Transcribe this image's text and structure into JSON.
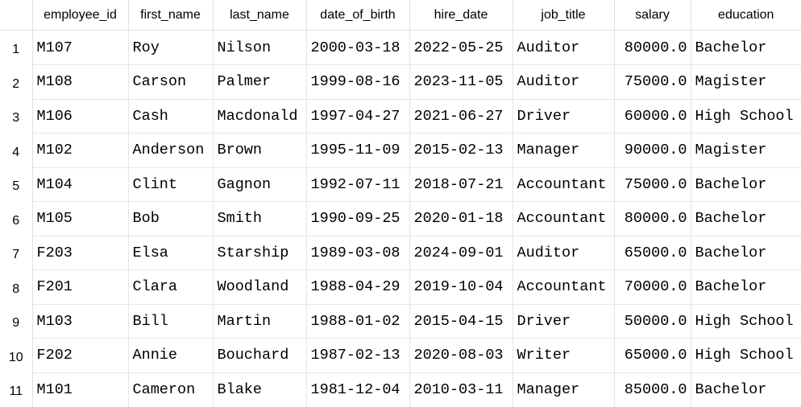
{
  "columns": [
    "employee_id",
    "first_name",
    "last_name",
    "date_of_birth",
    "hire_date",
    "job_title",
    "salary",
    "education"
  ],
  "rows": [
    {
      "n": "1",
      "employee_id": "M107",
      "first_name": "Roy",
      "last_name": "Nilson",
      "date_of_birth": "2000-03-18",
      "hire_date": "2022-05-25",
      "job_title": "Auditor",
      "salary": "80000.0",
      "education": "Bachelor"
    },
    {
      "n": "2",
      "employee_id": "M108",
      "first_name": "Carson",
      "last_name": "Palmer",
      "date_of_birth": "1999-08-16",
      "hire_date": "2023-11-05",
      "job_title": "Auditor",
      "salary": "75000.0",
      "education": "Magister"
    },
    {
      "n": "3",
      "employee_id": "M106",
      "first_name": "Cash",
      "last_name": "Macdonald",
      "date_of_birth": "1997-04-27",
      "hire_date": "2021-06-27",
      "job_title": "Driver",
      "salary": "60000.0",
      "education": "High School"
    },
    {
      "n": "4",
      "employee_id": "M102",
      "first_name": "Anderson",
      "last_name": "Brown",
      "date_of_birth": "1995-11-09",
      "hire_date": "2015-02-13",
      "job_title": "Manager",
      "salary": "90000.0",
      "education": "Magister"
    },
    {
      "n": "5",
      "employee_id": "M104",
      "first_name": "Clint",
      "last_name": "Gagnon",
      "date_of_birth": "1992-07-11",
      "hire_date": "2018-07-21",
      "job_title": "Accountant",
      "salary": "75000.0",
      "education": "Bachelor"
    },
    {
      "n": "6",
      "employee_id": "M105",
      "first_name": "Bob",
      "last_name": "Smith",
      "date_of_birth": "1990-09-25",
      "hire_date": "2020-01-18",
      "job_title": "Accountant",
      "salary": "80000.0",
      "education": "Bachelor"
    },
    {
      "n": "7",
      "employee_id": "F203",
      "first_name": "Elsa",
      "last_name": "Starship",
      "date_of_birth": "1989-03-08",
      "hire_date": "2024-09-01",
      "job_title": "Auditor",
      "salary": "65000.0",
      "education": "Bachelor"
    },
    {
      "n": "8",
      "employee_id": "F201",
      "first_name": "Clara",
      "last_name": "Woodland",
      "date_of_birth": "1988-04-29",
      "hire_date": "2019-10-04",
      "job_title": "Accountant",
      "salary": "70000.0",
      "education": "Bachelor"
    },
    {
      "n": "9",
      "employee_id": "M103",
      "first_name": "Bill",
      "last_name": "Martin",
      "date_of_birth": "1988-01-02",
      "hire_date": "2015-04-15",
      "job_title": "Driver",
      "salary": "50000.0",
      "education": "High School"
    },
    {
      "n": "10",
      "employee_id": "F202",
      "first_name": "Annie",
      "last_name": "Bouchard",
      "date_of_birth": "1987-02-13",
      "hire_date": "2020-08-03",
      "job_title": "Writer",
      "salary": "65000.0",
      "education": "High School"
    },
    {
      "n": "11",
      "employee_id": "M101",
      "first_name": "Cameron",
      "last_name": "Blake",
      "date_of_birth": "1981-12-04",
      "hire_date": "2010-03-11",
      "job_title": "Manager",
      "salary": "85000.0",
      "education": "Bachelor"
    }
  ]
}
